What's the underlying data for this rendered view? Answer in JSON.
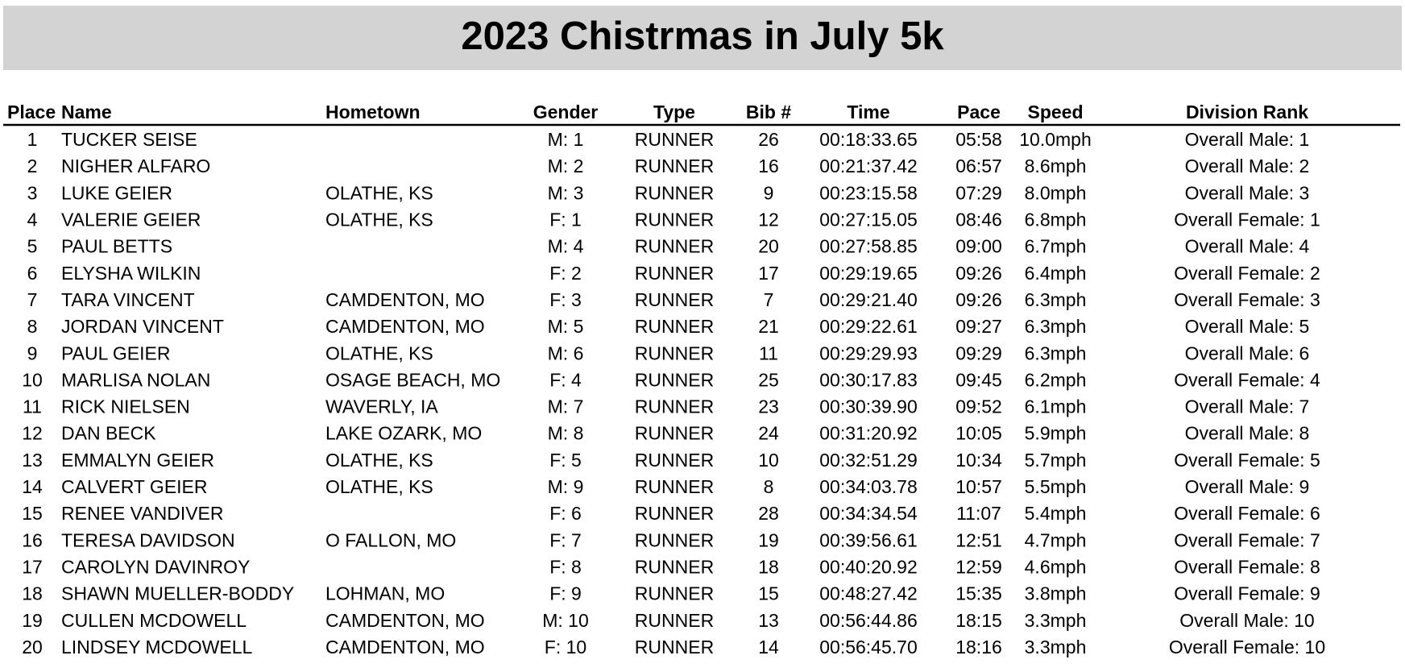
{
  "title": "2023 Chistrmas in July 5k",
  "table": {
    "columns": [
      "Place",
      "Name",
      "Hometown",
      "Gender",
      "Type",
      "Bib #",
      "Time",
      "Pace",
      "Speed",
      "Division Rank"
    ],
    "rows": [
      [
        "1",
        "TUCKER SEISE",
        null,
        "M: 1",
        "RUNNER",
        "26",
        "00:18:33.65",
        "05:58",
        "10.0mph",
        "Overall Male: 1"
      ],
      [
        "2",
        "NIGHER ALFARO",
        null,
        "M: 2",
        "RUNNER",
        "16",
        "00:21:37.42",
        "06:57",
        "8.6mph",
        "Overall Male: 2"
      ],
      [
        "3",
        "LUKE GEIER",
        "OLATHE, KS",
        "M: 3",
        "RUNNER",
        "9",
        "00:23:15.58",
        "07:29",
        "8.0mph",
        "Overall Male: 3"
      ],
      [
        "4",
        "VALERIE GEIER",
        "OLATHE, KS",
        "F: 1",
        "RUNNER",
        "12",
        "00:27:15.05",
        "08:46",
        "6.8mph",
        "Overall Female: 1"
      ],
      [
        "5",
        "PAUL BETTS",
        null,
        "M: 4",
        "RUNNER",
        "20",
        "00:27:58.85",
        "09:00",
        "6.7mph",
        "Overall Male: 4"
      ],
      [
        "6",
        "ELYSHA WILKIN",
        null,
        "F: 2",
        "RUNNER",
        "17",
        "00:29:19.65",
        "09:26",
        "6.4mph",
        "Overall Female: 2"
      ],
      [
        "7",
        "TARA VINCENT",
        "CAMDENTON, MO",
        "F: 3",
        "RUNNER",
        "7",
        "00:29:21.40",
        "09:26",
        "6.3mph",
        "Overall Female: 3"
      ],
      [
        "8",
        "JORDAN VINCENT",
        "CAMDENTON, MO",
        "M: 5",
        "RUNNER",
        "21",
        "00:29:22.61",
        "09:27",
        "6.3mph",
        "Overall Male: 5"
      ],
      [
        "9",
        "PAUL GEIER",
        "OLATHE, KS",
        "M: 6",
        "RUNNER",
        "11",
        "00:29:29.93",
        "09:29",
        "6.3mph",
        "Overall Male: 6"
      ],
      [
        "10",
        "MARLISA NOLAN",
        "OSAGE BEACH, MO",
        "F: 4",
        "RUNNER",
        "25",
        "00:30:17.83",
        "09:45",
        "6.2mph",
        "Overall Female: 4"
      ],
      [
        "11",
        "RICK NIELSEN",
        "WAVERLY, IA",
        "M: 7",
        "RUNNER",
        "23",
        "00:30:39.90",
        "09:52",
        "6.1mph",
        "Overall Male: 7"
      ],
      [
        "12",
        "DAN BECK",
        "LAKE OZARK, MO",
        "M: 8",
        "RUNNER",
        "24",
        "00:31:20.92",
        "10:05",
        "5.9mph",
        "Overall Male: 8"
      ],
      [
        "13",
        "EMMALYN GEIER",
        "OLATHE, KS",
        "F: 5",
        "RUNNER",
        "10",
        "00:32:51.29",
        "10:34",
        "5.7mph",
        "Overall Female: 5"
      ],
      [
        "14",
        "CALVERT GEIER",
        "OLATHE, KS",
        "M: 9",
        "RUNNER",
        "8",
        "00:34:03.78",
        "10:57",
        "5.5mph",
        "Overall Male: 9"
      ],
      [
        "15",
        "RENEE VANDIVER",
        null,
        "F: 6",
        "RUNNER",
        "28",
        "00:34:34.54",
        "11:07",
        "5.4mph",
        "Overall Female: 6"
      ],
      [
        "16",
        "TERESA DAVIDSON",
        "O FALLON, MO",
        "F: 7",
        "RUNNER",
        "19",
        "00:39:56.61",
        "12:51",
        "4.7mph",
        "Overall Female: 7"
      ],
      [
        "17",
        "CAROLYN DAVINROY",
        null,
        "F: 8",
        "RUNNER",
        "18",
        "00:40:20.92",
        "12:59",
        "4.6mph",
        "Overall Female: 8"
      ],
      [
        "18",
        "SHAWN MUELLER-BODDY",
        "LOHMAN, MO",
        "F: 9",
        "RUNNER",
        "15",
        "00:48:27.42",
        "15:35",
        "3.8mph",
        "Overall Female: 9"
      ],
      [
        "19",
        "CULLEN MCDOWELL",
        "CAMDENTON, MO",
        "M: 10",
        "RUNNER",
        "13",
        "00:56:44.86",
        "18:15",
        "3.3mph",
        "Overall Male: 10"
      ],
      [
        "20",
        "LINDSEY MCDOWELL",
        "CAMDENTON, MO",
        "F: 10",
        "RUNNER",
        "14",
        "00:56:45.70",
        "18:16",
        "3.3mph",
        "Overall Female: 10"
      ]
    ]
  }
}
